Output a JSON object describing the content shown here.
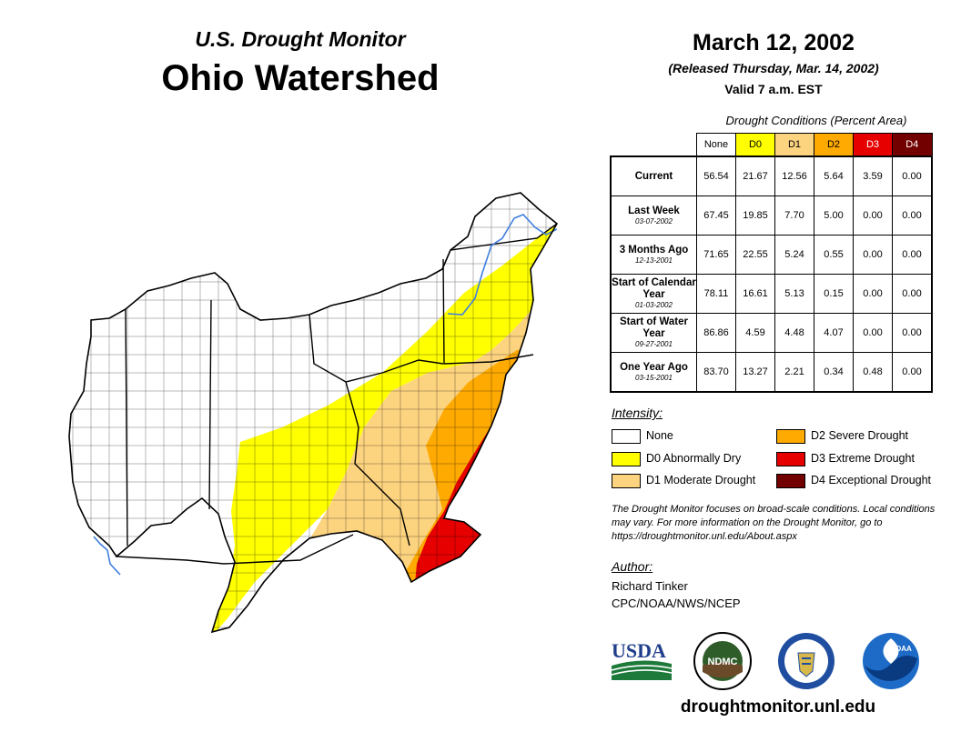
{
  "header": {
    "monitor_title": "U.S. Drought Monitor",
    "region_title": "Ohio Watershed",
    "date": "March 12, 2002",
    "released": "(Released Thursday, Mar. 14, 2002)",
    "valid": "Valid 7 a.m. EST"
  },
  "table": {
    "caption": "Drought Conditions (Percent Area)",
    "columns": [
      {
        "label": "None",
        "color": "#ffffff",
        "text_color": "#000000"
      },
      {
        "label": "D0",
        "color": "#ffff00",
        "text_color": "#000000"
      },
      {
        "label": "D1",
        "color": "#fcd37f",
        "text_color": "#000000"
      },
      {
        "label": "D2",
        "color": "#ffaa00",
        "text_color": "#000000"
      },
      {
        "label": "D3",
        "color": "#e60000",
        "text_color": "#ffffff"
      },
      {
        "label": "D4",
        "color": "#730000",
        "text_color": "#ffffff"
      }
    ],
    "rows": [
      {
        "label": "Current",
        "date": "",
        "values": [
          "56.54",
          "21.67",
          "12.56",
          "5.64",
          "3.59",
          "0.00"
        ]
      },
      {
        "label": "Last Week",
        "date": "03-07-2002",
        "values": [
          "67.45",
          "19.85",
          "7.70",
          "5.00",
          "0.00",
          "0.00"
        ]
      },
      {
        "label": "3 Months Ago",
        "date": "12-13-2001",
        "values": [
          "71.65",
          "22.55",
          "5.24",
          "0.55",
          "0.00",
          "0.00"
        ]
      },
      {
        "label": "Start of Calendar Year",
        "date": "01-03-2002",
        "values": [
          "78.11",
          "16.61",
          "5.13",
          "0.15",
          "0.00",
          "0.00"
        ]
      },
      {
        "label": "Start of Water Year",
        "date": "09-27-2001",
        "values": [
          "86.86",
          "4.59",
          "4.48",
          "4.07",
          "0.00",
          "0.00"
        ]
      },
      {
        "label": "One Year Ago",
        "date": "03-15-2001",
        "values": [
          "83.70",
          "13.27",
          "2.21",
          "0.34",
          "0.48",
          "0.00"
        ]
      }
    ]
  },
  "legend": {
    "title": "Intensity:",
    "items": [
      {
        "label": "None",
        "color": "#ffffff"
      },
      {
        "label": "D0 Abnormally Dry",
        "color": "#ffff00"
      },
      {
        "label": "D1 Moderate Drought",
        "color": "#fcd37f"
      },
      {
        "label": "D2 Severe Drought",
        "color": "#ffaa00"
      },
      {
        "label": "D3 Extreme Drought",
        "color": "#e60000"
      },
      {
        "label": "D4 Exceptional Drought",
        "color": "#730000"
      }
    ]
  },
  "note": "The Drought Monitor focuses on broad-scale conditions. Local conditions may vary. For more information on the Drought Monitor, go to https://droughtmonitor.unl.edu/About.aspx",
  "author": {
    "title": "Author:",
    "name": "Richard Tinker",
    "org": "CPC/NOAA/NWS/NCEP"
  },
  "logos": {
    "usda": "USDA",
    "ndmc": "NDMC",
    "noaa": "NOAA"
  },
  "footer_url": "droughtmonitor.unl.edu"
}
